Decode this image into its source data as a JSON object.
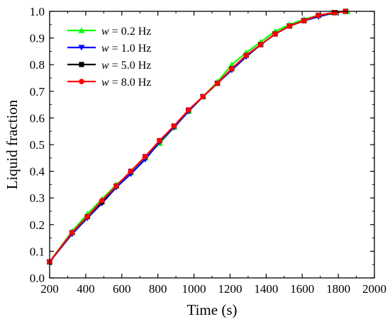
{
  "chart_data": {
    "type": "line",
    "xlabel": "Time (s)",
    "ylabel": "Liquid fraction",
    "xlim": [
      200,
      2000
    ],
    "ylim": [
      0.0,
      1.0
    ],
    "xticks": [
      200,
      400,
      600,
      800,
      1000,
      1200,
      1400,
      1600,
      1800,
      2000
    ],
    "yticks": [
      0.0,
      0.1,
      0.2,
      0.3,
      0.4,
      0.5,
      0.6,
      0.7,
      0.8,
      0.9,
      1.0
    ],
    "grid": false,
    "legend_position": "top-left",
    "series": [
      {
        "legend_symbol": "w",
        "legend_rest": " = 0.2 Hz",
        "color": "#00ff00",
        "marker": "triangle-up",
        "x": [
          200,
          325,
          410,
          490,
          570,
          650,
          730,
          810,
          890,
          970,
          1050,
          1130,
          1210,
          1290,
          1370,
          1450,
          1530,
          1610,
          1690,
          1770,
          1850
        ],
        "y": [
          0.06,
          0.175,
          0.24,
          0.295,
          0.35,
          0.395,
          0.45,
          0.505,
          0.565,
          0.625,
          0.68,
          0.735,
          0.8,
          0.845,
          0.885,
          0.925,
          0.95,
          0.97,
          0.985,
          0.995,
          1.0
        ]
      },
      {
        "legend_symbol": "w",
        "legend_rest": " = 1.0 Hz",
        "color": "#0000ff",
        "marker": "triangle-down",
        "x": [
          200,
          325,
          410,
          490,
          570,
          650,
          730,
          810,
          890,
          970,
          1050,
          1130,
          1210,
          1290,
          1370,
          1450,
          1530,
          1610,
          1690,
          1780
        ],
        "y": [
          0.06,
          0.165,
          0.225,
          0.28,
          0.34,
          0.39,
          0.445,
          0.51,
          0.565,
          0.625,
          0.68,
          0.73,
          0.78,
          0.83,
          0.875,
          0.915,
          0.945,
          0.965,
          0.98,
          0.995
        ]
      },
      {
        "legend_symbol": "w",
        "legend_rest": " = 5.0 Hz",
        "color": "#000000",
        "marker": "square",
        "x": [
          200,
          325,
          410,
          490,
          570,
          650,
          730,
          810,
          890,
          970,
          1050,
          1130,
          1210,
          1290,
          1370,
          1450,
          1530,
          1610,
          1690,
          1780,
          1840
        ],
        "y": [
          0.06,
          0.17,
          0.23,
          0.285,
          0.345,
          0.4,
          0.455,
          0.515,
          0.57,
          0.63,
          0.68,
          0.73,
          0.785,
          0.835,
          0.875,
          0.915,
          0.945,
          0.965,
          0.985,
          0.995,
          1.0
        ]
      },
      {
        "legend_symbol": "w",
        "legend_rest": " = 8.0 Hz",
        "color": "#ff0000",
        "marker": "circle",
        "x": [
          200,
          325,
          410,
          490,
          570,
          650,
          730,
          810,
          890,
          970,
          1050,
          1130,
          1210,
          1290,
          1370,
          1450,
          1530,
          1610,
          1690,
          1780,
          1840
        ],
        "y": [
          0.06,
          0.17,
          0.23,
          0.29,
          0.345,
          0.4,
          0.455,
          0.515,
          0.57,
          0.63,
          0.68,
          0.73,
          0.785,
          0.835,
          0.875,
          0.915,
          0.945,
          0.965,
          0.985,
          0.995,
          1.0
        ]
      }
    ]
  }
}
